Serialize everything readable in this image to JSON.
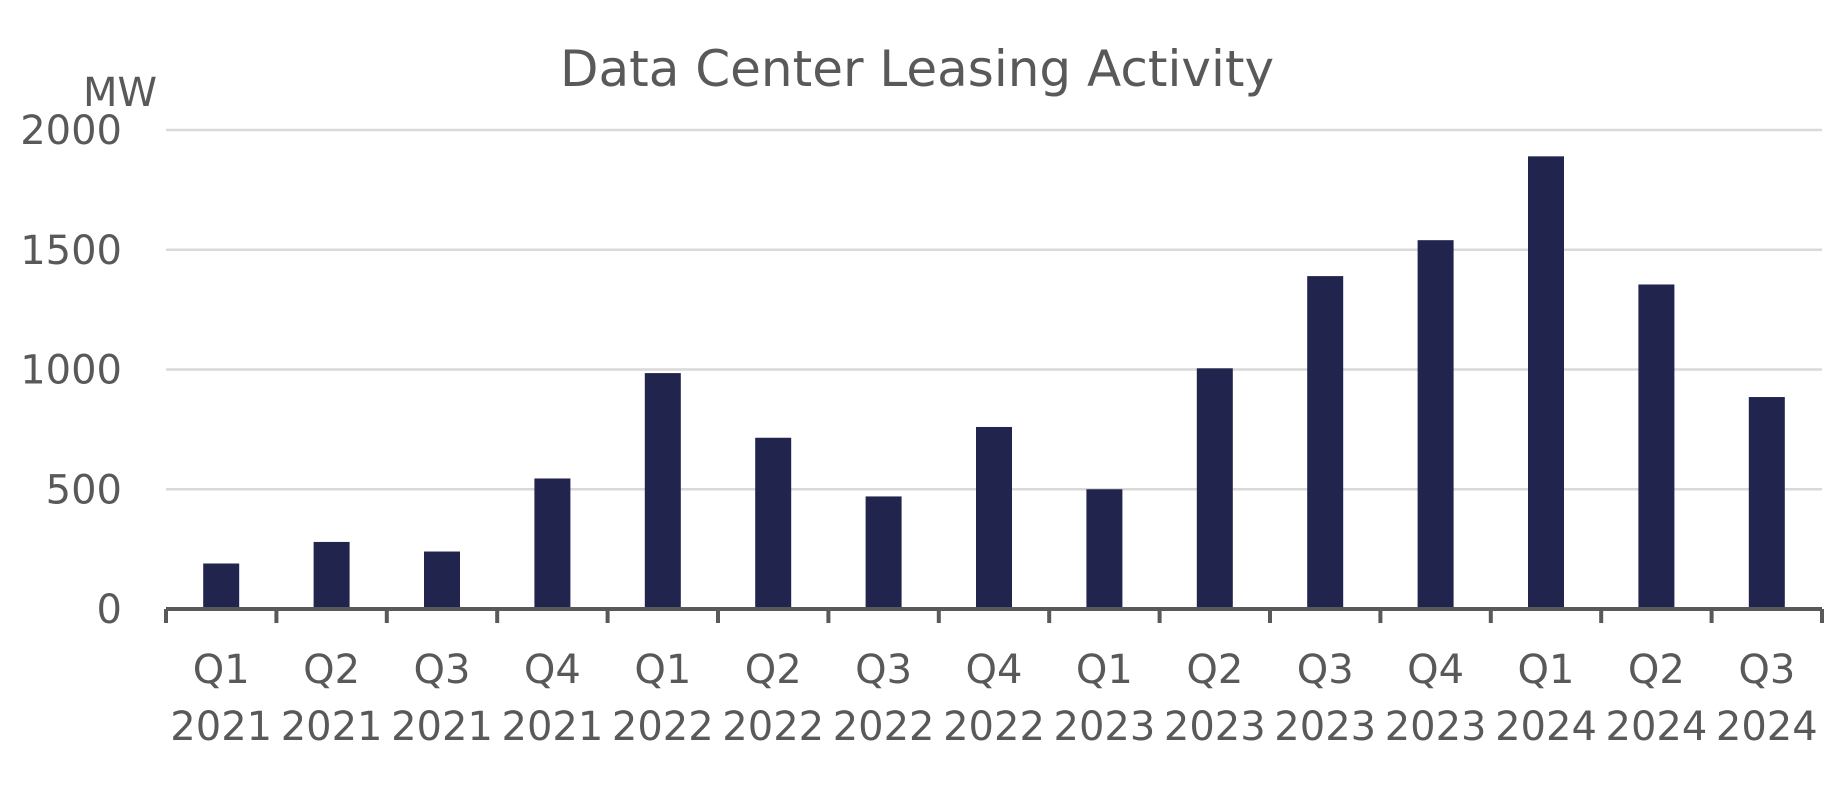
{
  "chart_data": {
    "type": "bar",
    "title": "Data Center Leasing Activity",
    "unit_label": "MW",
    "xlabel": "",
    "ylabel": "MW",
    "ylim": [
      0,
      2000
    ],
    "yticks": [
      0,
      500,
      1000,
      1500,
      2000
    ],
    "grid": true,
    "legend": "none",
    "bar_color": "#21254d",
    "categories": [
      [
        "Q1",
        "2021"
      ],
      [
        "Q2",
        "2021"
      ],
      [
        "Q3",
        "2021"
      ],
      [
        "Q4",
        "2021"
      ],
      [
        "Q1",
        "2022"
      ],
      [
        "Q2",
        "2022"
      ],
      [
        "Q3",
        "2022"
      ],
      [
        "Q4",
        "2022"
      ],
      [
        "Q1",
        "2023"
      ],
      [
        "Q2",
        "2023"
      ],
      [
        "Q3",
        "2023"
      ],
      [
        "Q4",
        "2023"
      ],
      [
        "Q1",
        "2024"
      ],
      [
        "Q2",
        "2024"
      ],
      [
        "Q3",
        "2024"
      ]
    ],
    "values": [
      190,
      280,
      240,
      545,
      985,
      715,
      470,
      760,
      500,
      1005,
      1390,
      1540,
      1890,
      1355,
      885
    ]
  }
}
